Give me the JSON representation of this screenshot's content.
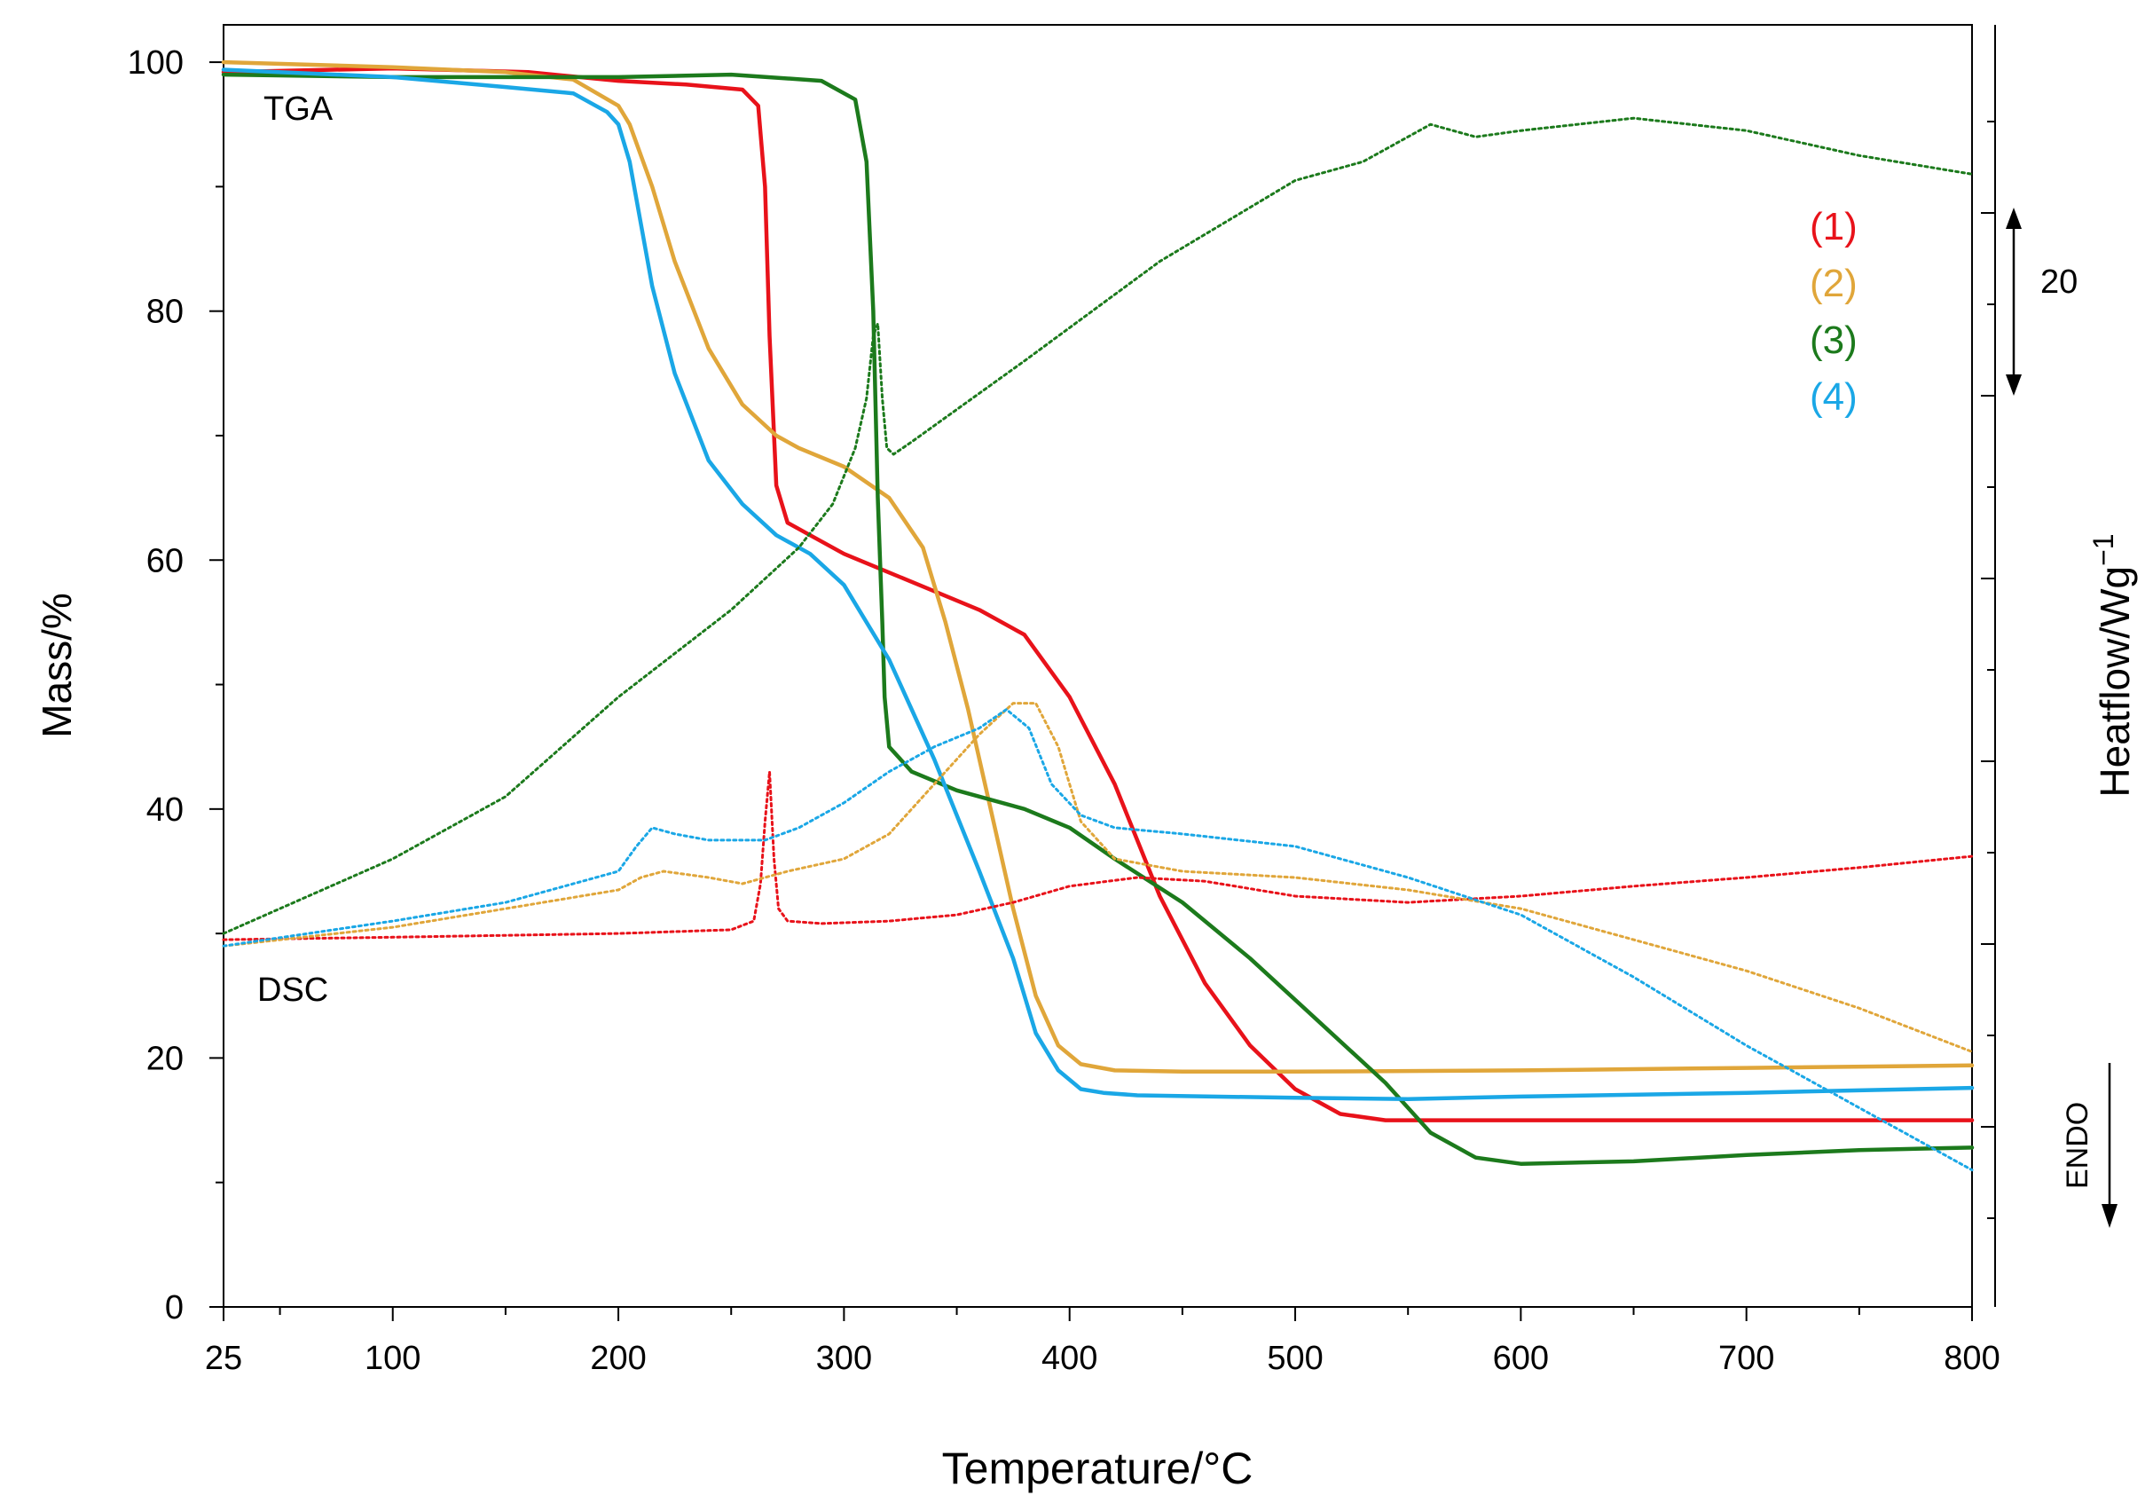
{
  "chart_data": {
    "type": "line",
    "xlabel": "Temperature/°C",
    "ylabel": "Mass/%",
    "y2label": "Heatflow/Wg",
    "y2label_sup": "−1",
    "xlim": [
      25,
      800
    ],
    "ylim": [
      0,
      103
    ],
    "x_ticks": [
      25,
      100,
      200,
      300,
      400,
      500,
      600,
      700,
      800
    ],
    "x_tick_labels": [
      "25",
      "100",
      "200",
      "300",
      "400",
      "500",
      "600",
      "700",
      "800"
    ],
    "y_ticks": [
      0,
      20,
      40,
      60,
      80,
      100
    ],
    "y_tick_labels": [
      "0",
      "20",
      "40",
      "60",
      "80",
      "100"
    ],
    "annotations": {
      "tga": "TGA",
      "dsc": "DSC",
      "scale_value": "20",
      "endo": "ENDO"
    },
    "legend": [
      {
        "label": "(1)",
        "color": "#e8121a"
      },
      {
        "label": "(2)",
        "color": "#e0a63a"
      },
      {
        "label": "(3)",
        "color": "#1c7a1c"
      },
      {
        "label": "(4)",
        "color": "#1aa7e6"
      }
    ],
    "series": [
      {
        "name": "(1) TGA",
        "kind": "tga",
        "color": "#e8121a",
        "x": [
          25,
          100,
          160,
          200,
          230,
          255,
          262,
          265,
          267,
          270,
          275,
          285,
          300,
          320,
          340,
          360,
          380,
          400,
          420,
          440,
          460,
          480,
          500,
          520,
          540,
          560,
          600,
          650,
          700,
          750,
          800
        ],
        "y": [
          99.2,
          99.5,
          99.2,
          98.5,
          98.2,
          97.8,
          96.5,
          90,
          78,
          66,
          63,
          62,
          60.5,
          59,
          57.5,
          56,
          54,
          49,
          42,
          33,
          26,
          21,
          17.5,
          15.5,
          15,
          15,
          15,
          15,
          15,
          15,
          15
        ]
      },
      {
        "name": "(2) TGA",
        "kind": "tga",
        "color": "#e0a63a",
        "x": [
          25,
          100,
          150,
          180,
          200,
          205,
          215,
          225,
          240,
          255,
          270,
          280,
          300,
          320,
          335,
          345,
          355,
          365,
          375,
          385,
          395,
          405,
          420,
          450,
          500,
          600,
          700,
          800
        ],
        "y": [
          100,
          99.6,
          99.2,
          98.6,
          96.5,
          95,
          90,
          84,
          77,
          72.5,
          70,
          69,
          67.5,
          65,
          61,
          55,
          48,
          40,
          32,
          25,
          21,
          19.5,
          19,
          18.9,
          18.9,
          19,
          19.2,
          19.4
        ]
      },
      {
        "name": "(3) TGA",
        "kind": "tga",
        "color": "#1c7a1c",
        "x": [
          25,
          100,
          200,
          250,
          290,
          305,
          310,
          313,
          315,
          317,
          318,
          320,
          330,
          350,
          380,
          400,
          420,
          450,
          480,
          510,
          540,
          560,
          580,
          600,
          650,
          700,
          750,
          800
        ],
        "y": [
          99,
          98.8,
          98.8,
          99,
          98.5,
          97,
          92,
          80,
          65,
          55,
          49,
          45,
          43,
          41.5,
          40,
          38.5,
          36,
          32.5,
          28,
          23,
          18,
          14,
          12,
          11.5,
          11.7,
          12.2,
          12.6,
          12.8
        ]
      },
      {
        "name": "(4) TGA",
        "kind": "tga",
        "color": "#1aa7e6",
        "x": [
          25,
          100,
          150,
          180,
          195,
          200,
          205,
          210,
          215,
          225,
          240,
          255,
          270,
          285,
          300,
          320,
          340,
          360,
          375,
          385,
          395,
          405,
          415,
          430,
          500,
          550,
          600,
          700,
          800
        ],
        "y": [
          99.4,
          98.8,
          98,
          97.5,
          96,
          95,
          92,
          87,
          82,
          75,
          68,
          64.5,
          62,
          60.5,
          58,
          52,
          44,
          35,
          28,
          22,
          19,
          17.5,
          17.2,
          17,
          16.8,
          16.7,
          16.9,
          17.2,
          17.6
        ]
      },
      {
        "name": "(1) DSC",
        "kind": "dsc",
        "color": "#e8121a",
        "x": [
          25,
          100,
          200,
          250,
          260,
          263,
          265,
          267,
          269,
          271,
          275,
          290,
          320,
          350,
          375,
          400,
          430,
          460,
          500,
          550,
          600,
          650,
          700,
          750,
          800
        ],
        "y": [
          29.5,
          29.7,
          30,
          30.3,
          31,
          34,
          39,
          43,
          36,
          32,
          31,
          30.8,
          31,
          31.5,
          32.5,
          33.8,
          34.5,
          34.2,
          33,
          32.5,
          33,
          33.8,
          34.5,
          35.3,
          36.2
        ]
      },
      {
        "name": "(2) DSC",
        "kind": "dsc",
        "color": "#e0a63a",
        "x": [
          25,
          100,
          150,
          200,
          210,
          220,
          240,
          255,
          275,
          300,
          320,
          340,
          360,
          375,
          385,
          395,
          405,
          420,
          450,
          500,
          550,
          600,
          650,
          700,
          750,
          800
        ],
        "y": [
          29,
          30.5,
          32,
          33.5,
          34.5,
          35,
          34.5,
          34,
          35,
          36,
          38,
          42,
          46,
          48.5,
          48.5,
          45,
          39,
          36,
          35,
          34.5,
          33.5,
          32,
          29.5,
          27,
          24,
          20.5
        ]
      },
      {
        "name": "(3) DSC",
        "kind": "dsc",
        "color": "#1c7a1c",
        "x": [
          25,
          100,
          150,
          200,
          250,
          280,
          295,
          305,
          310,
          313,
          315,
          317,
          319,
          322,
          330,
          380,
          440,
          500,
          530,
          560,
          580,
          600,
          650,
          700,
          750,
          800
        ],
        "y": [
          30,
          36,
          41,
          49,
          56,
          61,
          64.5,
          69,
          73,
          78,
          79,
          73,
          69,
          68.5,
          69.5,
          76,
          84,
          90.5,
          92,
          95,
          94,
          94.5,
          95.5,
          94.5,
          92.5,
          91
        ]
      },
      {
        "name": "(4) DSC",
        "kind": "dsc",
        "color": "#1aa7e6",
        "x": [
          25,
          100,
          150,
          200,
          208,
          215,
          225,
          240,
          265,
          280,
          300,
          320,
          340,
          360,
          372,
          382,
          392,
          405,
          420,
          450,
          500,
          550,
          600,
          650,
          700,
          750,
          800
        ],
        "y": [
          29,
          31,
          32.5,
          35,
          37,
          38.5,
          38,
          37.5,
          37.5,
          38.5,
          40.5,
          43,
          45,
          46.5,
          48,
          46.5,
          42,
          39.5,
          38.5,
          38,
          37,
          34.5,
          31.5,
          26.5,
          21,
          16,
          11
        ]
      }
    ]
  }
}
